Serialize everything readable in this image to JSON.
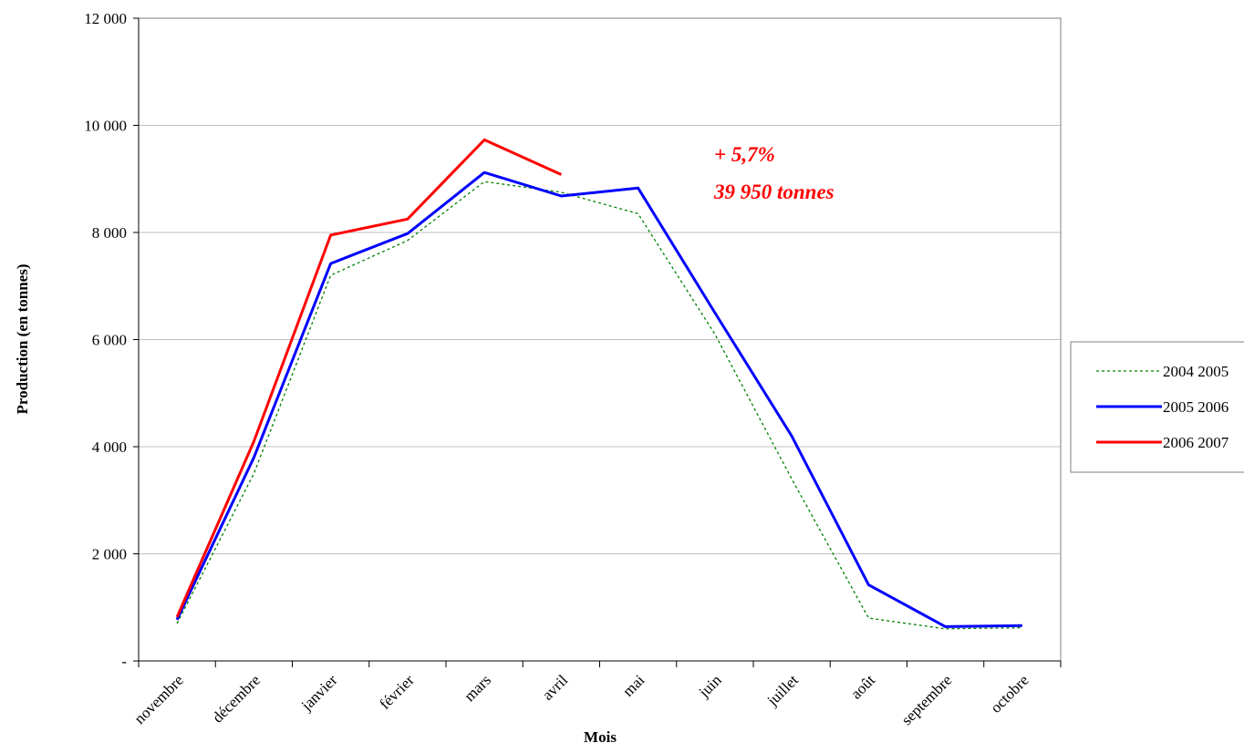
{
  "chart_data": {
    "type": "line",
    "title": "",
    "xlabel": "Mois",
    "ylabel": "Production (en tonnes)",
    "ylim": [
      0,
      12000
    ],
    "y_ticks": [
      {
        "value": 0,
        "label": "-"
      },
      {
        "value": 2000,
        "label": "2 000"
      },
      {
        "value": 4000,
        "label": "4 000"
      },
      {
        "value": 6000,
        "label": "6 000"
      },
      {
        "value": 8000,
        "label": "8 000"
      },
      {
        "value": 10000,
        "label": "10 000"
      },
      {
        "value": 12000,
        "label": "12 000"
      }
    ],
    "categories": [
      "novembre",
      "décembre",
      "janvier",
      "février",
      "mars",
      "avril",
      "mai",
      "juin",
      "juillet",
      "août",
      "septembre",
      "octobre"
    ],
    "grid": true,
    "legend_position": "right",
    "series": [
      {
        "name": "2004 2005",
        "color": "#008000",
        "dash": "dotted",
        "values": [
          700,
          3500,
          7200,
          7850,
          8950,
          8750,
          8350,
          6100,
          3400,
          800,
          600,
          620
        ]
      },
      {
        "name": "2005 2006",
        "color": "#0000ff",
        "dash": "solid",
        "values": [
          770,
          3800,
          7420,
          7980,
          9120,
          8680,
          8830,
          6500,
          4200,
          1420,
          640,
          660
        ]
      },
      {
        "name": "2006 2007",
        "color": "#ff0000",
        "dash": "solid",
        "values": [
          820,
          4100,
          7950,
          8250,
          9730,
          9080,
          null,
          null,
          null,
          null,
          null,
          null
        ]
      }
    ],
    "annotations": [
      {
        "text": "+ 5,7%",
        "color": "#ff0000"
      },
      {
        "text": "39 950 tonnes",
        "color": "#ff0000"
      }
    ]
  }
}
